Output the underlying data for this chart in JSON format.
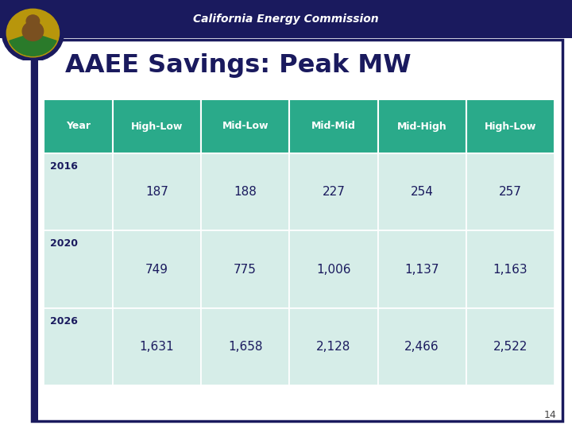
{
  "title": "AAEE Savings: Peak MW",
  "header_text": "California Energy Commission",
  "columns": [
    "Year",
    "High-Low",
    "Mid-Low",
    "Mid-Mid",
    "Mid-High",
    "High-Low"
  ],
  "rows": [
    [
      "2016",
      "187",
      "188",
      "227",
      "254",
      "257"
    ],
    [
      "2020",
      "749",
      "775",
      "1,006",
      "1,137",
      "1,163"
    ],
    [
      "2026",
      "1,631",
      "1,658",
      "2,128",
      "2,466",
      "2,522"
    ]
  ],
  "header_bg": "#2aaa8a",
  "header_text_color": "#ffffff",
  "row_bg": "#d6ede8",
  "cell_text_color": "#1a1a5e",
  "year_text_color": "#1a1a5e",
  "title_color": "#1a1a5e",
  "top_bar_color": "#1a1a5e",
  "border_color": "#1a1a5e",
  "slide_bg": "#ffffff",
  "page_number": "14"
}
